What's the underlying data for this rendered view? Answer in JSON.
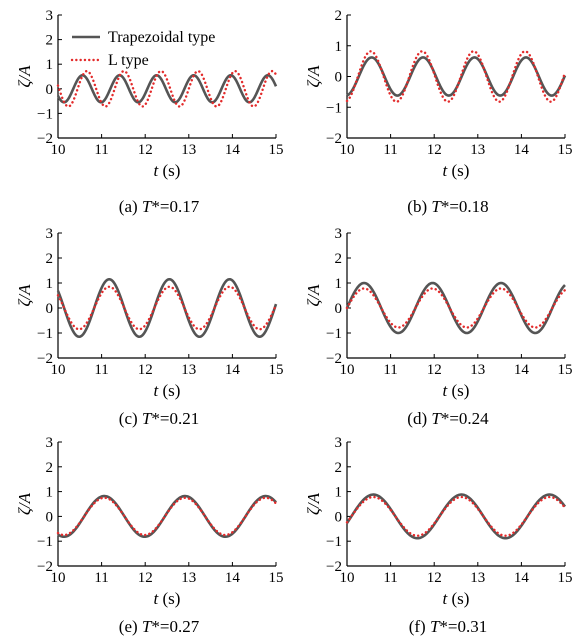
{
  "chart_data": [
    {
      "type": "line",
      "title": "",
      "caption_prefix": "(a) ",
      "caption_var": "T",
      "caption_rest": "*=0.17",
      "xlabel_var": "t",
      "xlabel_unit": " (s)",
      "ylabel": "ζ/A",
      "xlim": [
        10,
        15
      ],
      "ylim": [
        -2,
        3
      ],
      "xticks": [
        "10",
        "11",
        "12",
        "13",
        "14",
        "15"
      ],
      "yticks": [
        "−2",
        "−1",
        "0",
        "1",
        "2",
        "3"
      ],
      "legend": {
        "position": "top-left",
        "entries": [
          "Trapezoidal type",
          "L type"
        ]
      },
      "series": [
        {
          "name": "Trapezoidal type",
          "color": "#555555",
          "style": "solid",
          "amplitude": 0.55,
          "period": 0.85,
          "phase": 0.35,
          "offset": 0
        },
        {
          "name": "L type",
          "color": "#e32b2b",
          "style": "dotted",
          "amplitude": 0.72,
          "period": 0.85,
          "phase": 0.45,
          "offset": 0
        }
      ]
    },
    {
      "type": "line",
      "title": "",
      "caption_prefix": "(b) ",
      "caption_var": "T",
      "caption_rest": "*=0.18",
      "xlabel_var": "t",
      "xlabel_unit": " (s)",
      "ylabel": "ζ/A",
      "xlim": [
        10,
        15
      ],
      "ylim": [
        -2,
        2
      ],
      "xticks": [
        "10",
        "11",
        "12",
        "13",
        "14",
        "15"
      ],
      "yticks": [
        "−2",
        "−1",
        "0",
        "1",
        "2"
      ],
      "series": [
        {
          "amplitude": 0.62,
          "period": 1.18,
          "phase": 0.27,
          "offset": 0,
          "color": "#555555",
          "style": "solid"
        },
        {
          "amplitude": 0.82,
          "period": 1.18,
          "phase": 0.25,
          "offset": 0,
          "color": "#e32b2b",
          "style": "dotted"
        }
      ]
    },
    {
      "type": "line",
      "title": "",
      "caption_prefix": "(c) ",
      "caption_var": "T",
      "caption_rest": "*=0.21",
      "xlabel_var": "t",
      "xlabel_unit": " (s)",
      "ylabel": "ζ/A",
      "xlim": [
        10,
        15
      ],
      "ylim": [
        -2,
        3
      ],
      "xticks": [
        "10",
        "11",
        "12",
        "13",
        "14",
        "15"
      ],
      "yticks": [
        "−2",
        "−1",
        "0",
        "1",
        "2",
        "3"
      ],
      "series": [
        {
          "amplitude": 1.15,
          "period": 1.38,
          "phase": 0.83,
          "offset": 0,
          "color": "#555555",
          "style": "solid"
        },
        {
          "amplitude": 0.85,
          "period": 1.38,
          "phase": 0.83,
          "offset": 0,
          "color": "#e32b2b",
          "style": "dotted"
        }
      ]
    },
    {
      "type": "line",
      "title": "",
      "caption_prefix": "(d) ",
      "caption_var": "T",
      "caption_rest": "*=0.24",
      "xlabel_var": "t",
      "xlabel_unit": " (s)",
      "ylabel": "ζ/A",
      "xlim": [
        10,
        15
      ],
      "ylim": [
        -2,
        3
      ],
      "xticks": [
        "10",
        "11",
        "12",
        "13",
        "14",
        "15"
      ],
      "yticks": [
        "−2",
        "−1",
        "0",
        "1",
        "2",
        "3"
      ],
      "series": [
        {
          "amplitude": 1.0,
          "period": 1.57,
          "phase": 0.0,
          "offset": 0,
          "color": "#555555",
          "style": "solid"
        },
        {
          "amplitude": 0.78,
          "period": 1.57,
          "phase": 0.0,
          "offset": 0,
          "color": "#e32b2b",
          "style": "dotted"
        }
      ]
    },
    {
      "type": "line",
      "title": "",
      "caption_prefix": "(e) ",
      "caption_var": "T",
      "caption_rest": "*=0.27",
      "xlabel_var": "t",
      "xlabel_unit": " (s)",
      "ylabel": "ζ/A",
      "xlim": [
        10,
        15
      ],
      "ylim": [
        -2,
        3
      ],
      "xticks": [
        "10",
        "11",
        "12",
        "13",
        "14",
        "15"
      ],
      "yticks": [
        "−2",
        "−1",
        "0",
        "1",
        "2",
        "3"
      ],
      "series": [
        {
          "amplitude": 0.82,
          "period": 1.85,
          "phase": 0.6,
          "offset": 0,
          "color": "#555555",
          "style": "solid"
        },
        {
          "amplitude": 0.75,
          "period": 1.85,
          "phase": 0.6,
          "offset": 0,
          "color": "#e32b2b",
          "style": "dotted"
        }
      ]
    },
    {
      "type": "line",
      "title": "",
      "caption_prefix": "(f) ",
      "caption_var": "T",
      "caption_rest": "*=0.31",
      "xlabel_var": "t",
      "xlabel_unit": " (s)",
      "ylabel": "ζ/A",
      "xlim": [
        10,
        15
      ],
      "ylim": [
        -2,
        3
      ],
      "xticks": [
        "10",
        "11",
        "12",
        "13",
        "14",
        "15"
      ],
      "yticks": [
        "−2",
        "−1",
        "0",
        "1",
        "2",
        "3"
      ],
      "series": [
        {
          "amplitude": 0.88,
          "period": 2.02,
          "phase": 0.1,
          "offset": 0,
          "color": "#555555",
          "style": "solid"
        },
        {
          "amplitude": 0.78,
          "period": 2.02,
          "phase": 0.1,
          "offset": 0,
          "color": "#e32b2b",
          "style": "dotted"
        }
      ]
    }
  ]
}
